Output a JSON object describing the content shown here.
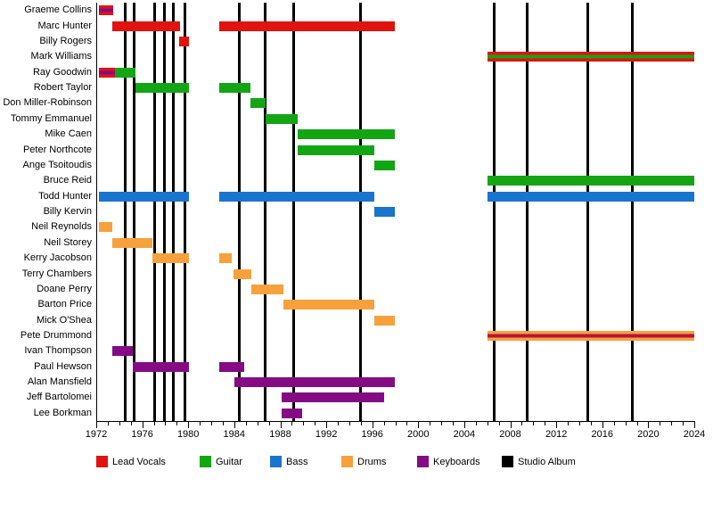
{
  "chart_data": {
    "type": "bar",
    "subtype": "gantt-membership-timeline",
    "title": "",
    "xlabel": "",
    "ylabel": "",
    "grid": false,
    "legend_position": "bottom",
    "x_axis": {
      "min": 1972,
      "max": 2024,
      "label_step": 4,
      "minor_tick_step": 1,
      "tick_labels": [
        "1972",
        "1976",
        "1980",
        "1984",
        "1988",
        "1992",
        "1996",
        "2000",
        "2004",
        "2008",
        "2012",
        "2016",
        "2020",
        "2024"
      ]
    },
    "palette": {
      "lead_vocals": "#e1130f",
      "guitar": "#14a514",
      "bass": "#1874cd",
      "drums": "#f7a13c",
      "keyboards": "#850b85",
      "stripe_red": "#b5123d",
      "studio_album": "#000000"
    },
    "album_lines": [
      1974.5,
      1975.3,
      1977.1,
      1977.9,
      1978.7,
      1979.7,
      1984.4,
      1986.7,
      1989.2,
      1995.0,
      2006.6,
      2009.5,
      2014.7,
      2018.6
    ],
    "members": [
      {
        "name": "Graeme Collins",
        "segments": [
          {
            "start": 1972.2,
            "end": 1973.5,
            "color": "lead_vocals",
            "stripe": "keyboards"
          }
        ]
      },
      {
        "name": "Marc Hunter",
        "segments": [
          {
            "start": 1973.4,
            "end": 1979.3,
            "color": "lead_vocals"
          },
          {
            "start": 1982.7,
            "end": 1998.0,
            "color": "lead_vocals"
          }
        ]
      },
      {
        "name": "Billy Rogers",
        "segments": [
          {
            "start": 1979.2,
            "end": 1980.1,
            "color": "lead_vocals"
          }
        ]
      },
      {
        "name": "Mark Williams",
        "segments": [
          {
            "start": 2006.0,
            "end": 2024.0,
            "color": "lead_vocals",
            "stripe": "guitar"
          }
        ]
      },
      {
        "name": "Ray Goodwin",
        "segments": [
          {
            "start": 1972.2,
            "end": 1973.6,
            "color": "lead_vocals",
            "stripe": "keyboards"
          },
          {
            "start": 1973.6,
            "end": 1975.4,
            "color": "guitar"
          }
        ]
      },
      {
        "name": "Robert Taylor",
        "segments": [
          {
            "start": 1975.4,
            "end": 1980.1,
            "color": "guitar"
          },
          {
            "start": 1982.7,
            "end": 1985.4,
            "color": "guitar"
          }
        ]
      },
      {
        "name": "Don Miller-Robinson",
        "segments": [
          {
            "start": 1985.4,
            "end": 1986.7,
            "color": "guitar"
          }
        ]
      },
      {
        "name": "Tommy Emmanuel",
        "segments": [
          {
            "start": 1986.7,
            "end": 1989.5,
            "color": "guitar"
          }
        ]
      },
      {
        "name": "Mike Caen",
        "segments": [
          {
            "start": 1989.5,
            "end": 1998.0,
            "color": "guitar"
          }
        ]
      },
      {
        "name": "Peter Northcote",
        "segments": [
          {
            "start": 1989.5,
            "end": 1996.2,
            "color": "guitar"
          }
        ]
      },
      {
        "name": "Ange Tsoitoudis",
        "segments": [
          {
            "start": 1996.2,
            "end": 1998.0,
            "color": "guitar"
          }
        ]
      },
      {
        "name": "Bruce Reid",
        "segments": [
          {
            "start": 2006.0,
            "end": 2024.0,
            "color": "guitar"
          }
        ]
      },
      {
        "name": "Todd Hunter",
        "segments": [
          {
            "start": 1972.2,
            "end": 1980.1,
            "color": "bass"
          },
          {
            "start": 1982.7,
            "end": 1996.2,
            "color": "bass"
          },
          {
            "start": 2006.0,
            "end": 2024.0,
            "color": "bass"
          }
        ]
      },
      {
        "name": "Billy Kervin",
        "segments": [
          {
            "start": 1996.2,
            "end": 1998.0,
            "color": "bass"
          }
        ]
      },
      {
        "name": "Neil Reynolds",
        "segments": [
          {
            "start": 1972.2,
            "end": 1973.4,
            "color": "drums"
          }
        ]
      },
      {
        "name": "Neil Storey",
        "segments": [
          {
            "start": 1973.4,
            "end": 1976.9,
            "color": "drums"
          }
        ]
      },
      {
        "name": "Kerry Jacobson",
        "segments": [
          {
            "start": 1976.9,
            "end": 1980.1,
            "color": "drums"
          },
          {
            "start": 1982.7,
            "end": 1983.8,
            "color": "drums"
          }
        ]
      },
      {
        "name": "Terry Chambers",
        "segments": [
          {
            "start": 1983.9,
            "end": 1985.5,
            "color": "drums"
          }
        ]
      },
      {
        "name": "Doane Perry",
        "segments": [
          {
            "start": 1985.5,
            "end": 1988.3,
            "color": "drums"
          }
        ]
      },
      {
        "name": "Barton Price",
        "segments": [
          {
            "start": 1988.3,
            "end": 1996.2,
            "color": "drums"
          }
        ]
      },
      {
        "name": "Mick O'Shea",
        "segments": [
          {
            "start": 1996.2,
            "end": 1998.0,
            "color": "drums"
          }
        ]
      },
      {
        "name": "Pete Drummond",
        "segments": [
          {
            "start": 2006.0,
            "end": 2024.0,
            "color": "drums",
            "stripe": "stripe_red"
          }
        ]
      },
      {
        "name": "Ivan Thompson",
        "segments": [
          {
            "start": 1973.4,
            "end": 1975.2,
            "color": "keyboards"
          }
        ]
      },
      {
        "name": "Paul Hewson",
        "segments": [
          {
            "start": 1975.2,
            "end": 1980.1,
            "color": "keyboards"
          },
          {
            "start": 1982.7,
            "end": 1984.9,
            "color": "keyboards"
          }
        ]
      },
      {
        "name": "Alan Mansfield",
        "segments": [
          {
            "start": 1984.0,
            "end": 1998.0,
            "color": "keyboards"
          }
        ]
      },
      {
        "name": "Jeff Bartolomei",
        "segments": [
          {
            "start": 1988.1,
            "end": 1997.0,
            "color": "keyboards"
          }
        ]
      },
      {
        "name": "Lee Borkman",
        "segments": [
          {
            "start": 1988.1,
            "end": 1989.9,
            "color": "keyboards"
          }
        ]
      }
    ],
    "legend": [
      {
        "label": "Lead Vocals",
        "color": "lead_vocals"
      },
      {
        "label": "Guitar",
        "color": "guitar"
      },
      {
        "label": "Bass",
        "color": "bass"
      },
      {
        "label": "Drums",
        "color": "drums"
      },
      {
        "label": "Keyboards",
        "color": "keyboards"
      },
      {
        "label": "Studio Album",
        "color": "studio_album"
      }
    ]
  }
}
